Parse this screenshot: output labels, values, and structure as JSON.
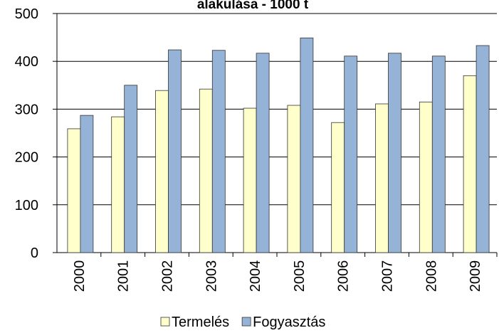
{
  "chart_data": {
    "type": "bar",
    "title": "alakulása - 1000 t",
    "categories": [
      "2000",
      "2001",
      "2002",
      "2003",
      "2004",
      "2005",
      "2006",
      "2007",
      "2008",
      "2009"
    ],
    "series": [
      {
        "name": "Termelés",
        "color": "#ffffcc",
        "values": [
          259,
          284,
          339,
          342,
          302,
          308,
          272,
          311,
          315,
          370
        ]
      },
      {
        "name": "Fogyasztás",
        "color": "#95b3d7",
        "values": [
          287,
          350,
          424,
          423,
          417,
          449,
          411,
          417,
          411,
          433
        ]
      }
    ],
    "ylim": [
      0,
      500
    ],
    "yticks": [
      0,
      100,
      200,
      300,
      400,
      500
    ],
    "grid": true,
    "legend": "bottom"
  }
}
